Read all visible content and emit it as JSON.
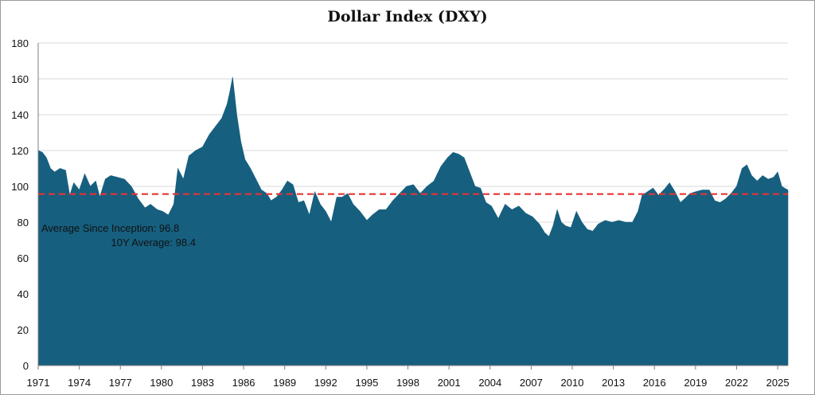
{
  "chart_data": {
    "type": "area",
    "title": "Dollar Index (DXY)",
    "xlabel": "",
    "ylabel": "",
    "xlim": [
      1971,
      2025.75
    ],
    "ylim": [
      0,
      180
    ],
    "yticks": [
      0,
      20,
      40,
      60,
      80,
      100,
      120,
      140,
      160,
      180
    ],
    "xticks": [
      "1971",
      "1974",
      "1977",
      "1980",
      "1983",
      "1986",
      "1989",
      "1992",
      "1995",
      "1998",
      "2001",
      "2004",
      "2007",
      "2010",
      "2013",
      "2016",
      "2019",
      "2022",
      "2025"
    ],
    "grid": true,
    "series": [
      {
        "name": "Dollar Index (DXY)",
        "color": "#165f7f",
        "x": [
          1971.0,
          1971.3,
          1971.6,
          1971.9,
          1972.2,
          1972.6,
          1973.0,
          1973.3,
          1973.6,
          1974.0,
          1974.4,
          1974.8,
          1975.2,
          1975.5,
          1975.9,
          1976.3,
          1976.8,
          1977.3,
          1977.8,
          1978.3,
          1978.8,
          1979.2,
          1979.7,
          1980.1,
          1980.5,
          1980.9,
          1981.2,
          1981.6,
          1982.0,
          1982.5,
          1983.0,
          1983.5,
          1984.0,
          1984.4,
          1984.8,
          1985.0,
          1985.2,
          1985.5,
          1985.8,
          1986.1,
          1986.5,
          1986.9,
          1987.3,
          1987.7,
          1988.0,
          1988.4,
          1988.8,
          1989.2,
          1989.6,
          1990.0,
          1990.4,
          1990.8,
          1991.2,
          1991.6,
          1992.0,
          1992.4,
          1992.8,
          1993.2,
          1993.6,
          1994.0,
          1994.5,
          1995.0,
          1995.4,
          1995.9,
          1996.4,
          1996.9,
          1997.4,
          1997.9,
          1998.4,
          1998.9,
          1999.4,
          1999.9,
          2000.4,
          2000.9,
          2001.3,
          2001.7,
          2002.1,
          2002.5,
          2002.9,
          2003.3,
          2003.7,
          2004.1,
          2004.6,
          2005.1,
          2005.6,
          2006.1,
          2006.6,
          2007.1,
          2007.6,
          2008.0,
          2008.3,
          2008.6,
          2008.9,
          2009.2,
          2009.5,
          2009.9,
          2010.3,
          2010.7,
          2011.1,
          2011.5,
          2011.9,
          2012.4,
          2012.9,
          2013.4,
          2013.9,
          2014.4,
          2014.8,
          2015.1,
          2015.5,
          2015.9,
          2016.3,
          2016.8,
          2017.1,
          2017.5,
          2017.9,
          2018.2,
          2018.6,
          2019.0,
          2019.5,
          2020.0,
          2020.4,
          2020.8,
          2021.2,
          2021.6,
          2022.0,
          2022.4,
          2022.75,
          2023.1,
          2023.5,
          2023.9,
          2024.3,
          2024.7,
          2025.0,
          2025.3,
          2025.5,
          2025.75
        ],
        "values": [
          120,
          119,
          116,
          110,
          108,
          110,
          109,
          95,
          102,
          98,
          107,
          100,
          103,
          94,
          104,
          106,
          105,
          104,
          100,
          93,
          88,
          90,
          87,
          86,
          84,
          90,
          110,
          104,
          117,
          120,
          122,
          129,
          134,
          138,
          146,
          153,
          161,
          140,
          125,
          115,
          110,
          104,
          98,
          96,
          92,
          94,
          98,
          103,
          101,
          91,
          92,
          84,
          97,
          90,
          86,
          80,
          94,
          94,
          96,
          90,
          86,
          81,
          84,
          87,
          87,
          92,
          96,
          100,
          101,
          96,
          100,
          103,
          111,
          116,
          119,
          118,
          116,
          108,
          100,
          99,
          91,
          89,
          82,
          90,
          87,
          89,
          85,
          83,
          79,
          74,
          72,
          78,
          87,
          80,
          78,
          77,
          86,
          80,
          76,
          75,
          79,
          81,
          80,
          81,
          80,
          80,
          86,
          95,
          97,
          99,
          95,
          99,
          102,
          97,
          91,
          93,
          96,
          97,
          98,
          98,
          92,
          91,
          93,
          96,
          100,
          110,
          112,
          106,
          103,
          106,
          104,
          105,
          108,
          100,
          99,
          98
        ]
      }
    ],
    "reference_line": {
      "value": 95.7,
      "style": "dashed",
      "color": "#e53333"
    },
    "annotations": [
      {
        "label": "Average Since Inception:",
        "value": "96.8"
      },
      {
        "label": "10Y Average:",
        "value": "98.4"
      }
    ]
  },
  "labels": {
    "avg_since_inception": "Average Since Inception: 96.8",
    "avg_10y": "10Y Average: 98.4"
  }
}
